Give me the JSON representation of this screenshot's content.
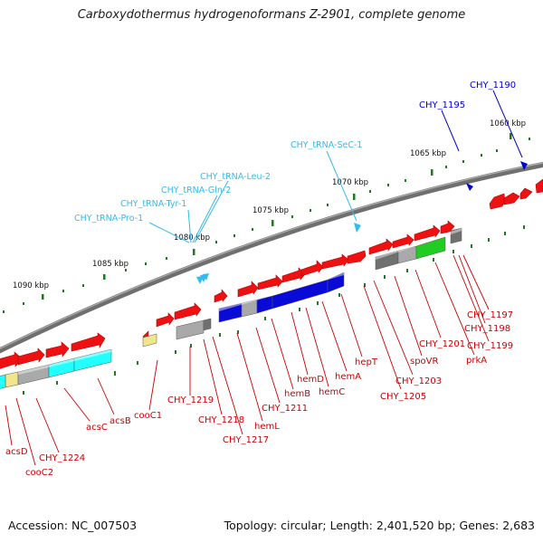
{
  "title": "Carboxydothermus hydrogenoformans Z-2901, complete genome",
  "footer": {
    "accession": "Accession: NC_007503",
    "summary": "Topology: circular; Length: 2,401,520 bp; Genes: 2,683"
  },
  "colors": {
    "backbone": "#7a7a7a",
    "gene_red": "#ee1111",
    "gene_red_label": "#cc0000",
    "hemB_blue": "#0a0ad8",
    "acs_cyan": "#22ffff",
    "gray": "#a9a9a9",
    "dark_gray": "#707070",
    "green": "#22cc22",
    "pale_yellow": "#f0e68c",
    "trna_cyan": "#33bbee",
    "ruler_tick": "#227722",
    "pseudo_blue": "#0000cc",
    "text": "#111111"
  },
  "ruler_labels": [
    "1060 kbp",
    "1065 kbp",
    "1070 kbp",
    "1075 kbp",
    "1080 kbp",
    "1085 kbp",
    "1090 kbp"
  ],
  "trna_labels": [
    "CHY_tRNA-SeC-1",
    "CHY_tRNA-Leu-2",
    "CHY_tRNA-Gln-2",
    "CHY_tRNA-Tyr-1",
    "CHY_tRNA-Pro-1"
  ],
  "blue_labels": [
    "CHY_1190",
    "CHY_1195"
  ],
  "gene_labels": [
    "acsD",
    "cooC2",
    "CHY_1224",
    "acsC",
    "acsB",
    "cooC1",
    "CHY_1219",
    "CHY_1218",
    "CHY_1217",
    "hemL",
    "CHY_1211",
    "hemB",
    "hemD",
    "hemC",
    "hemA",
    "hepT",
    "CHY_1205",
    "CHY_1203",
    "spoVR",
    "CHY_1201",
    "prkA",
    "CHY_1199",
    "CHY_1198",
    "CHY_1197"
  ]
}
